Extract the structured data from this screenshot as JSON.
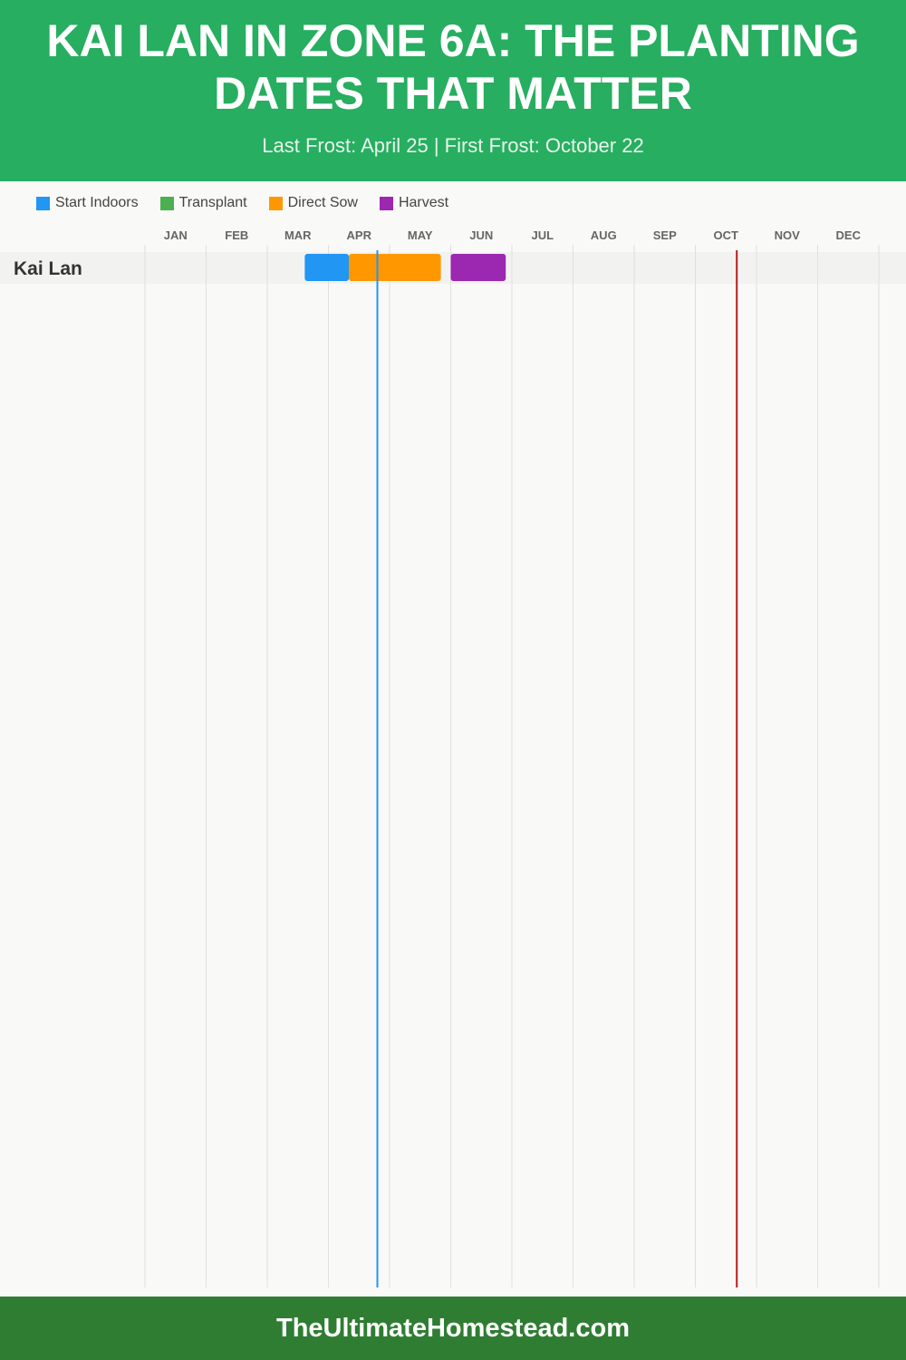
{
  "header": {
    "title": "KAI LAN IN ZONE 6A: THE PLANTING DATES THAT MATTER",
    "subtitle": "Last Frost: April 25 | First Frost: October 22"
  },
  "footer": {
    "site": "TheUltimateHomestead.com"
  },
  "chart_data": {
    "type": "gantt",
    "months": [
      "JAN",
      "FEB",
      "MAR",
      "APR",
      "MAY",
      "JUN",
      "JUL",
      "AUG",
      "SEP",
      "OCT",
      "NOV",
      "DEC"
    ],
    "legend": [
      {
        "name": "Start Indoors",
        "color": "#2196f3"
      },
      {
        "name": "Transplant",
        "color": "#4caf50"
      },
      {
        "name": "Direct Sow",
        "color": "#ff9800"
      },
      {
        "name": "Harvest",
        "color": "#9c27b0"
      }
    ],
    "crops": [
      {
        "name": "Kai Lan",
        "tasks": [
          {
            "type": "Start Indoors",
            "start": "03-20",
            "end": "04-11"
          },
          {
            "type": "Direct Sow",
            "start": "04-11",
            "end": "05-27"
          },
          {
            "type": "Harvest",
            "start": "06-01",
            "end": "06-28"
          }
        ]
      }
    ],
    "markers": [
      {
        "label": "Last Frost",
        "date": "04-25",
        "color": "#2196f3"
      },
      {
        "label": "First Frost",
        "date": "10-22",
        "color": "#b71c1c"
      }
    ],
    "grid": true,
    "legend_position": "top-left"
  }
}
